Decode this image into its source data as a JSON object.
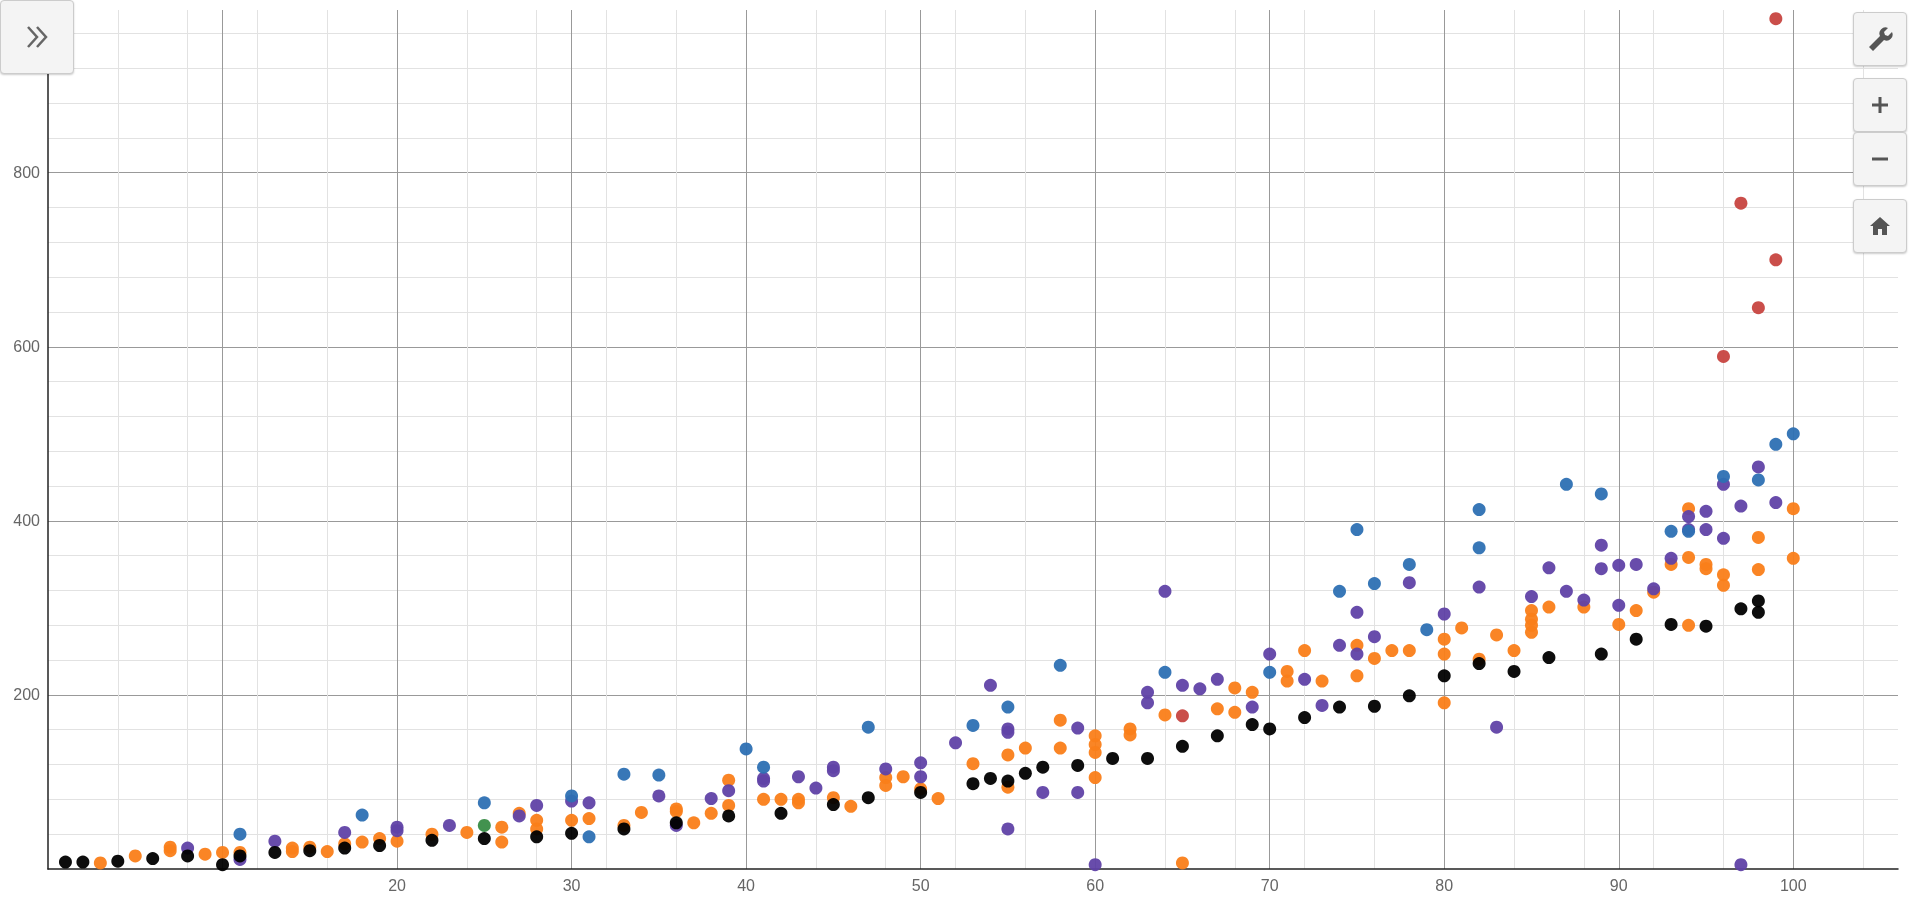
{
  "chart_data": {
    "type": "scatter",
    "marker": "circle",
    "grid": true,
    "xlim": [
      0,
      106
    ],
    "ylim": [
      0,
      987
    ],
    "xticks": [
      {
        "value": 10,
        "label": null
      },
      20,
      30,
      40,
      50,
      60,
      70,
      80,
      90,
      100
    ],
    "yticks": [
      200,
      400,
      600,
      800
    ],
    "series": [
      {
        "color": "#fa7e19",
        "x": [
          3,
          5,
          7,
          7,
          9,
          10,
          11,
          14,
          14,
          15,
          16,
          17,
          18,
          19,
          20,
          22,
          24,
          26,
          26,
          27,
          28,
          28,
          30,
          31,
          33,
          34,
          36,
          36,
          37,
          38,
          39,
          39,
          41,
          42,
          43,
          43,
          45,
          46,
          48,
          48,
          49,
          50,
          51,
          53,
          55,
          55,
          56,
          58,
          58,
          60,
          60,
          60,
          60,
          62,
          62,
          64,
          65,
          67,
          68,
          68,
          69,
          71,
          71,
          72,
          73,
          75,
          75,
          76,
          77,
          78,
          80,
          80,
          80,
          81,
          82,
          83,
          84,
          85,
          85,
          85,
          85,
          86,
          88,
          90,
          91,
          92,
          93,
          94,
          94,
          94,
          95,
          95,
          96,
          96,
          98,
          98,
          100,
          100
        ],
        "values": [
          7,
          15,
          25,
          21,
          17,
          19,
          19,
          20,
          24,
          25,
          20,
          29,
          31,
          35,
          32,
          40,
          42,
          48,
          31,
          64,
          56,
          46,
          56,
          58,
          50,
          65,
          69,
          66,
          53,
          64,
          102,
          73,
          80,
          80,
          80,
          76,
          82,
          72,
          96,
          105,
          106,
          92,
          81,
          121,
          94,
          131,
          139,
          139,
          171,
          153,
          143,
          134,
          105,
          161,
          154,
          177,
          7,
          184,
          208,
          180,
          203,
          227,
          216,
          251,
          216,
          257,
          222,
          242,
          251,
          251,
          264,
          247,
          191,
          277,
          241,
          269,
          251,
          297,
          287,
          280,
          272,
          301,
          301,
          281,
          297,
          318,
          350,
          414,
          358,
          280,
          350,
          345,
          338,
          326,
          381,
          344,
          414,
          357
        ]
      },
      {
        "color": "#6042a6",
        "x": [
          8,
          11,
          13,
          17,
          20,
          20,
          23,
          27,
          28,
          30,
          31,
          35,
          36,
          38,
          39,
          41,
          41,
          43,
          44,
          45,
          45,
          48,
          50,
          50,
          52,
          54,
          55,
          55,
          55,
          57,
          59,
          59,
          60,
          63,
          63,
          64,
          65,
          66,
          67,
          69,
          70,
          72,
          73,
          74,
          75,
          75,
          76,
          78,
          80,
          82,
          83,
          85,
          86,
          87,
          88,
          89,
          89,
          90,
          90,
          91,
          92,
          93,
          94,
          94,
          95,
          95,
          96,
          96,
          97,
          97,
          98,
          99
        ],
        "values": [
          24,
          11,
          32,
          42,
          48,
          44,
          50,
          61,
          73,
          78,
          76,
          84,
          50,
          81,
          90,
          104,
          101,
          106,
          93,
          117,
          113,
          115,
          122,
          106,
          145,
          211,
          161,
          157,
          46,
          88,
          162,
          88,
          5,
          203,
          191,
          319,
          211,
          207,
          218,
          186,
          247,
          218,
          188,
          257,
          295,
          247,
          267,
          329,
          293,
          324,
          163,
          313,
          346,
          319,
          309,
          372,
          345,
          349,
          303,
          350,
          322,
          357,
          405,
          390,
          411,
          390,
          442,
          380,
          417,
          5,
          462,
          421
        ]
      },
      {
        "color": "#2d70b3",
        "x": [
          11,
          18,
          25,
          30,
          31,
          33,
          35,
          40,
          41,
          47,
          53,
          55,
          58,
          64,
          70,
          74,
          75,
          76,
          78,
          79,
          82,
          82,
          87,
          89,
          93,
          94,
          96,
          98,
          99,
          100
        ],
        "values": [
          40,
          62,
          76,
          84,
          37,
          109,
          108,
          138,
          117,
          163,
          165,
          186,
          234,
          226,
          226,
          319,
          390,
          328,
          350,
          275,
          413,
          369,
          442,
          431,
          388,
          388,
          451,
          447,
          488,
          500
        ]
      },
      {
        "color": "#000000",
        "x": [
          1,
          2,
          4,
          6,
          8,
          10,
          11,
          13,
          15,
          17,
          19,
          22,
          25,
          28,
          30,
          33,
          36,
          39,
          42,
          45,
          47,
          50,
          53,
          54,
          55,
          56,
          57,
          59,
          61,
          63,
          65,
          67,
          69,
          70,
          72,
          74,
          76,
          78,
          80,
          82,
          84,
          86,
          89,
          91,
          93,
          95,
          97,
          98,
          98
        ],
        "values": [
          8,
          8,
          9,
          12,
          15,
          5,
          15,
          19,
          21,
          24,
          27,
          33,
          35,
          37,
          41,
          46,
          53,
          61,
          64,
          74,
          82,
          88,
          98,
          104,
          101,
          110,
          117,
          119,
          127,
          127,
          141,
          153,
          166,
          161,
          174,
          186,
          187,
          199,
          222,
          236,
          227,
          243,
          247,
          264,
          281,
          279,
          299,
          308,
          295
        ]
      },
      {
        "color": "#388c46",
        "x": [
          25
        ],
        "values": [
          50
        ]
      },
      {
        "color": "#c74440",
        "x": [
          65,
          96,
          97,
          98,
          99,
          99
        ],
        "values": [
          176,
          589,
          765,
          645,
          700,
          977
        ]
      }
    ]
  }
}
